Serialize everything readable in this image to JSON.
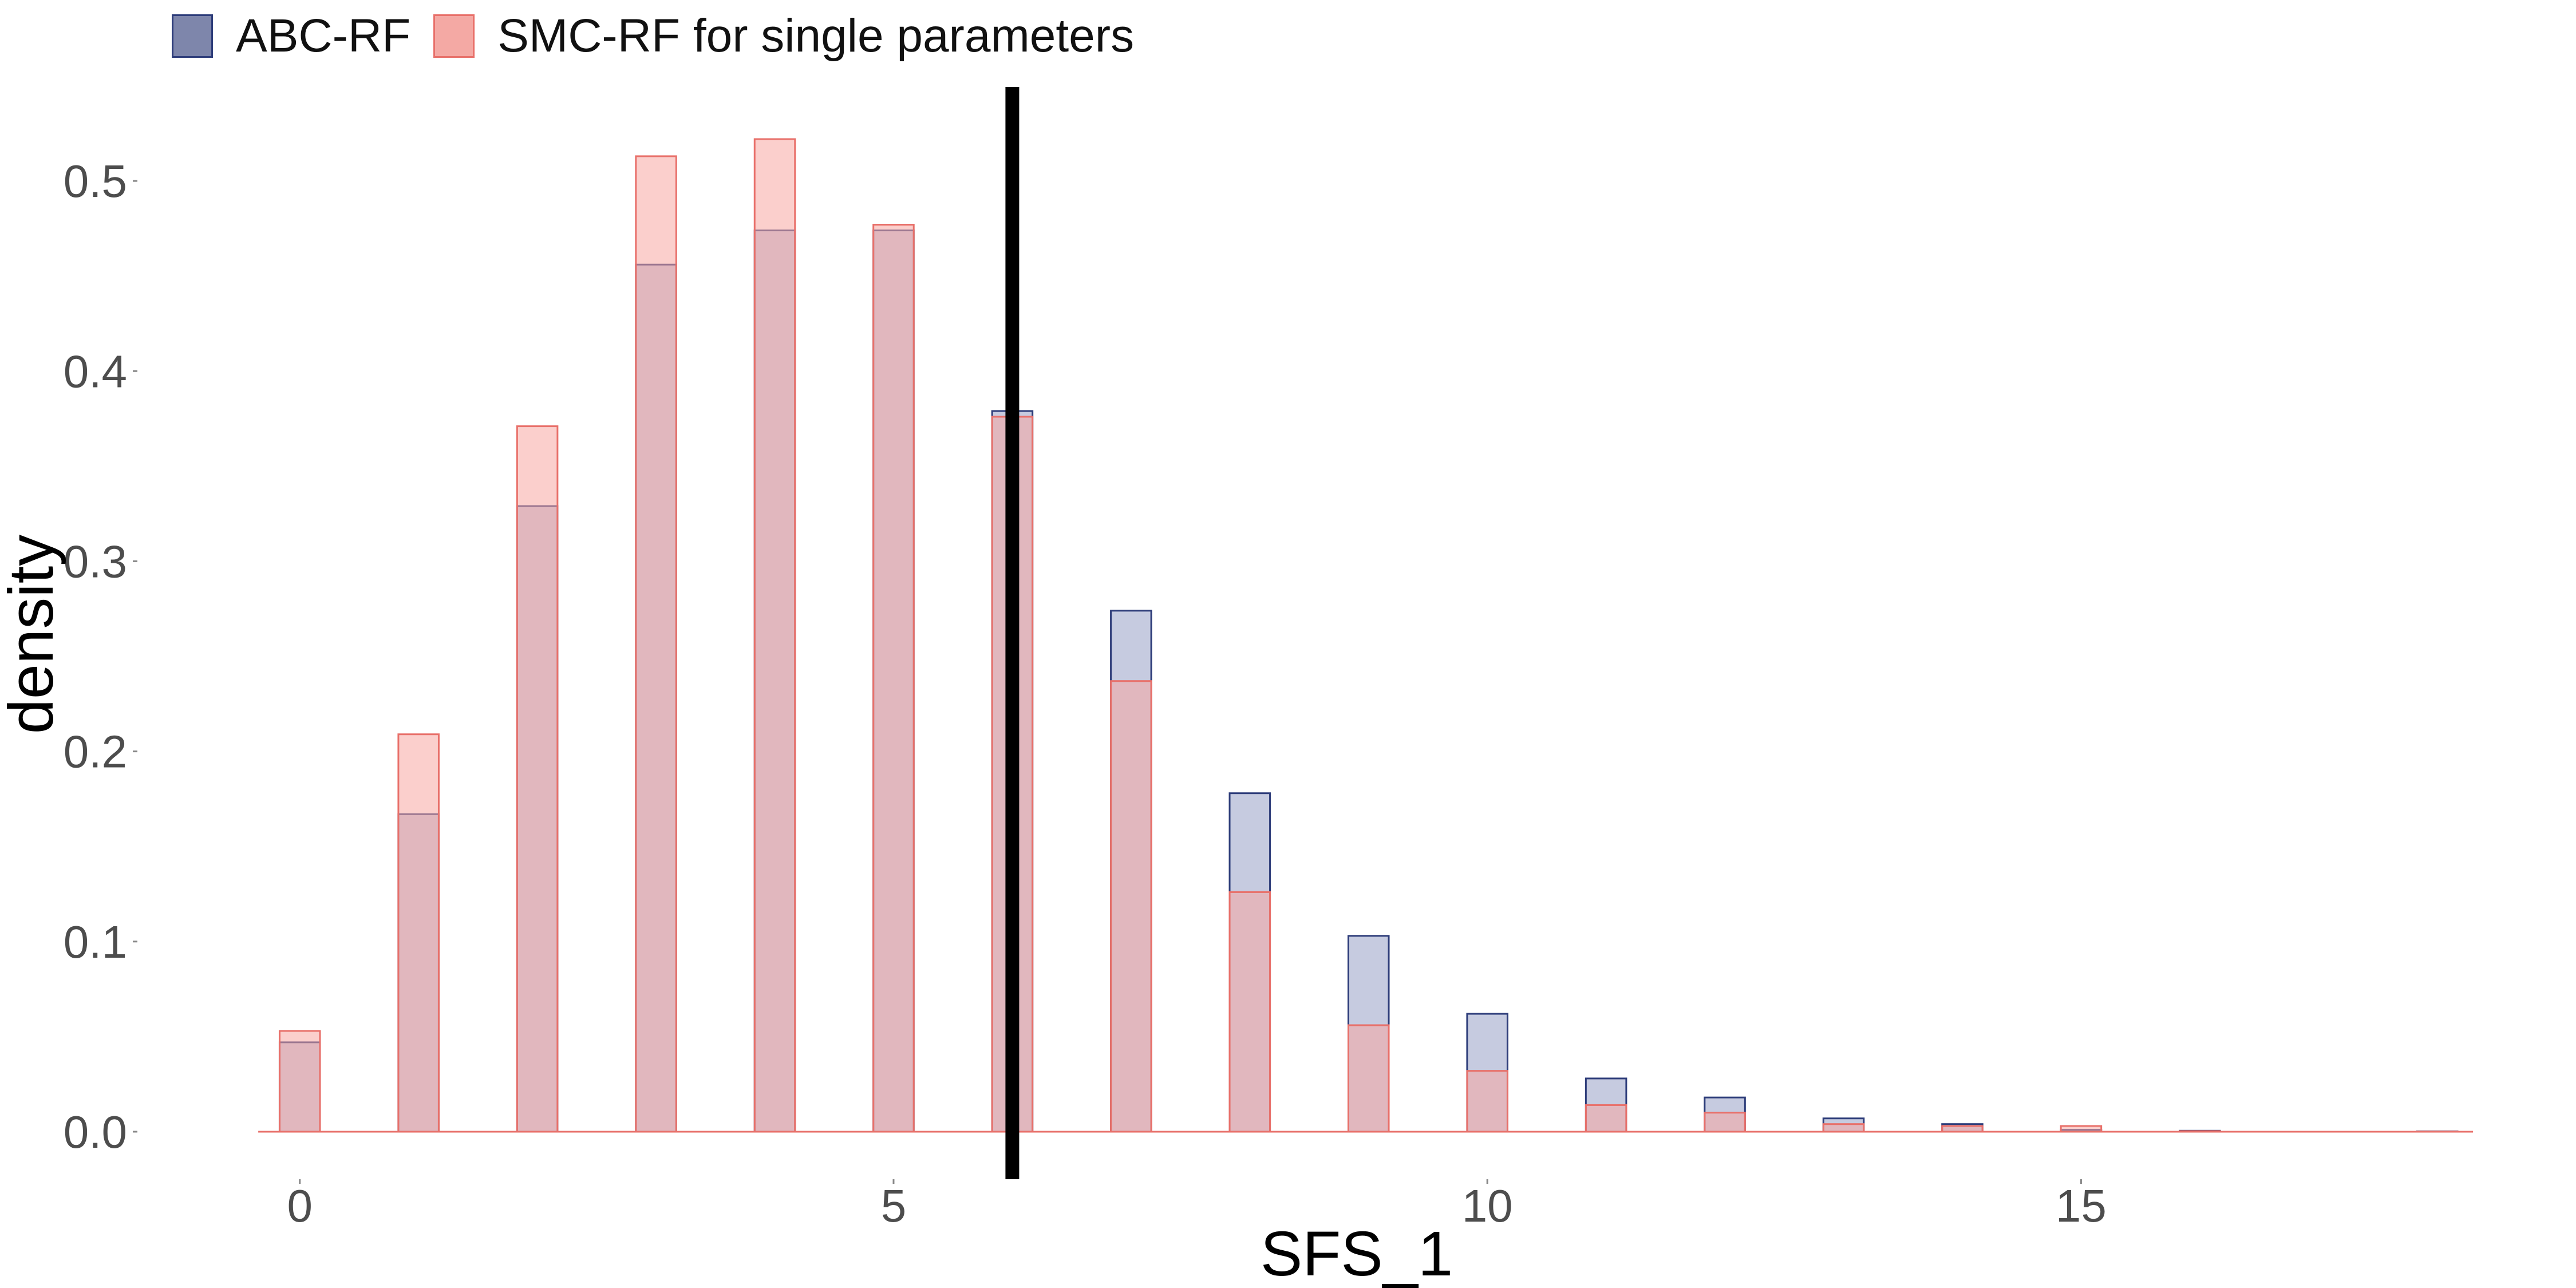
{
  "legend": {
    "items": [
      {
        "label": "ABC-RF",
        "fill": "#7e86ab",
        "stroke": "#2e3d7a"
      },
      {
        "label": "SMC-RF for single parameters",
        "fill": "#f4a9a4",
        "stroke": "#e8706a"
      }
    ]
  },
  "chart_data": {
    "type": "bar",
    "title": "",
    "xlabel": "SFS_1",
    "ylabel": "density",
    "xlim": [
      -0.5,
      18.3
    ],
    "ylim": [
      -0.025,
      0.55
    ],
    "xticks": [
      0,
      5,
      10,
      15
    ],
    "yticks": [
      0.0,
      0.1,
      0.2,
      0.3,
      0.4,
      0.5
    ],
    "ytick_labels": [
      "0.0",
      "0.1",
      "0.2",
      "0.3",
      "0.4",
      "0.5"
    ],
    "grid": false,
    "legend_position": "top-left",
    "reference_line_x": 6,
    "x": [
      0,
      1,
      2,
      3,
      4,
      5,
      6,
      7,
      8,
      9,
      10,
      11,
      12,
      13,
      14,
      15,
      16,
      17,
      18
    ],
    "series": [
      {
        "name": "ABC-RF",
        "fill": "#98a0c6",
        "stroke": "#2e3d7a",
        "values": [
          0.047,
          0.167,
          0.329,
          0.456,
          0.474,
          0.474,
          0.379,
          0.274,
          0.178,
          0.103,
          0.062,
          0.028,
          0.018,
          0.007,
          0.004,
          0.001,
          0.0005,
          0.0,
          0.0002
        ]
      },
      {
        "name": "SMC-RF for single parameters",
        "fill": "#f8a8a2",
        "stroke": "#e8706a",
        "values": [
          0.053,
          0.209,
          0.371,
          0.513,
          0.522,
          0.477,
          0.376,
          0.237,
          0.126,
          0.056,
          0.032,
          0.014,
          0.01,
          0.004,
          0.003,
          0.003,
          0.0003,
          0.0,
          0.0001
        ]
      }
    ]
  }
}
